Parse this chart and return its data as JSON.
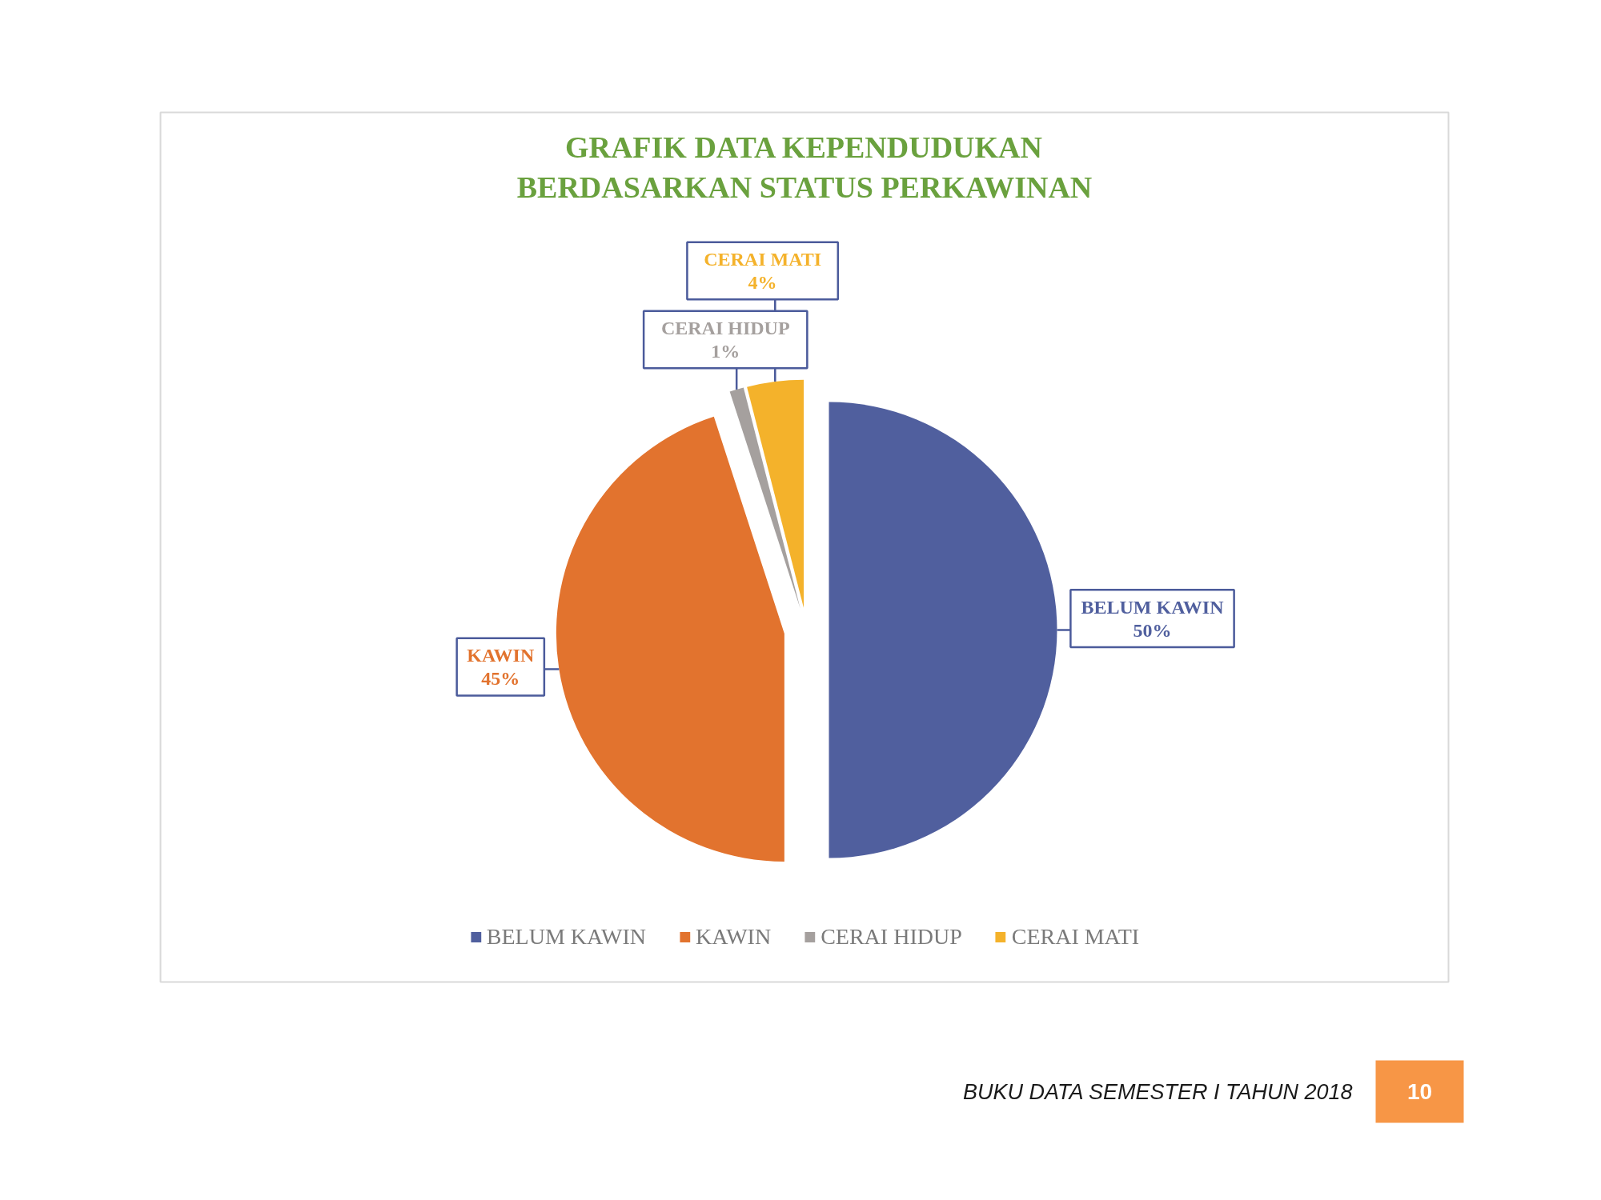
{
  "chart_data": {
    "type": "pie",
    "title": "GRAFIK DATA KEPENDUDUKAN\nBERDASARKAN STATUS PERKAWINAN",
    "categories": [
      "BELUM KAWIN",
      "KAWIN",
      "CERAI HIDUP",
      "CERAI MATI"
    ],
    "values": [
      50,
      45,
      1,
      4
    ],
    "colors": [
      "#505f9e",
      "#e2732e",
      "#a5a09e",
      "#f4b22b"
    ],
    "value_labels": [
      "50%",
      "45%",
      "1%",
      "4%"
    ],
    "legend": "bottom",
    "annotations": [
      "BUKU DATA SEMESTER I TAHUN 2018",
      "10"
    ]
  }
}
